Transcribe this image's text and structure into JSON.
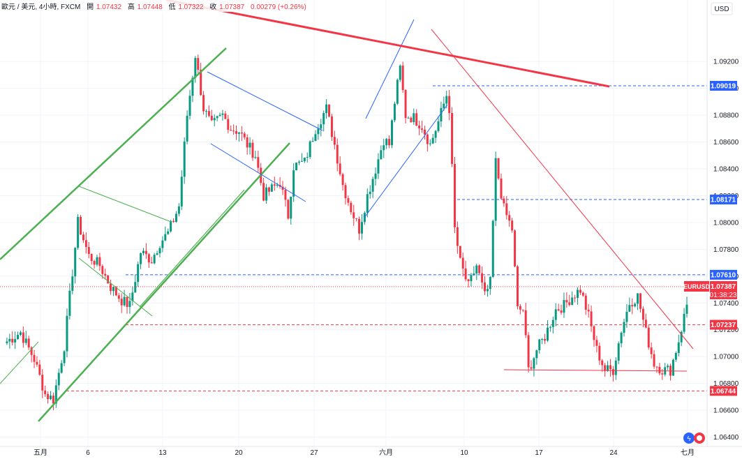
{
  "header": {
    "symbol": "歐元 / 美元, 4小時, FXCM",
    "open_label": "開",
    "open_value": "1.07432",
    "high_label": "高",
    "high_value": "1.07448",
    "low_label": "低",
    "low_value": "1.07322",
    "close_label": "收",
    "close_value": "1.07387",
    "change": "0.00279 (+0.26%)"
  },
  "currency_button": "USD",
  "price_tag": {
    "symbol": "EURUSD",
    "price": "1.07387",
    "countdown": "01:38:23"
  },
  "level_tags": [
    "1.09019",
    "1.08171",
    "1.07610",
    "1.07237",
    "1.06744"
  ],
  "colors": {
    "up": "#089981",
    "down": "#f23645",
    "blue": "#2962ff",
    "green": "#4caf50"
  },
  "chart_data": {
    "type": "candlestick",
    "title": "",
    "xlabel": "",
    "ylabel": "",
    "ylim": [
      1.0632,
      1.0932
    ],
    "y_ticks": [
      "1.06400",
      "1.06600",
      "1.06800",
      "1.07000",
      "1.07200",
      "1.07400",
      "1.07600",
      "1.07800",
      "1.08000",
      "1.08200",
      "1.08400",
      "1.08600",
      "1.08800",
      "1.09000",
      "1.09200"
    ],
    "x_ticks": [
      "五月",
      "6",
      "13",
      "20",
      "27",
      "六月",
      "10",
      "17",
      "24",
      "七月"
    ],
    "grid": true,
    "horizontal_levels": [
      {
        "value": 1.09019,
        "style": "blue-dashed"
      },
      {
        "value": 1.08171,
        "style": "blue-dashed"
      },
      {
        "value": 1.0761,
        "style": "blue-dashed"
      },
      {
        "value": 1.07237,
        "style": "red-dashed"
      },
      {
        "value": 1.06744,
        "style": "red-dashed"
      }
    ],
    "anchors": [
      [
        0,
        1.071
      ],
      [
        6,
        1.0718
      ],
      [
        11,
        1.0698
      ],
      [
        15,
        1.0672
      ],
      [
        18,
        1.0668
      ],
      [
        22,
        1.0708
      ],
      [
        27,
        1.08
      ],
      [
        31,
        1.0775
      ],
      [
        35,
        1.0768
      ],
      [
        39,
        1.0752
      ],
      [
        43,
        1.0742
      ],
      [
        46,
        1.0738
      ],
      [
        50,
        1.0778
      ],
      [
        54,
        1.0772
      ],
      [
        57,
        1.0785
      ],
      [
        60,
        1.0792
      ],
      [
        64,
        1.0812
      ],
      [
        67,
        1.088
      ],
      [
        70,
        1.0925
      ],
      [
        73,
        1.0885
      ],
      [
        76,
        1.0872
      ],
      [
        80,
        1.088
      ],
      [
        83,
        1.087
      ],
      [
        86,
        1.0868
      ],
      [
        89,
        1.0858
      ],
      [
        92,
        1.085
      ],
      [
        95,
        1.082
      ],
      [
        98,
        1.0825
      ],
      [
        101,
        1.083
      ],
      [
        104,
        1.0805
      ],
      [
        106,
        1.0842
      ],
      [
        110,
        1.0845
      ],
      [
        114,
        1.087
      ],
      [
        118,
        1.0885
      ],
      [
        121,
        1.0858
      ],
      [
        124,
        1.0828
      ],
      [
        127,
        1.081
      ],
      [
        130,
        1.0795
      ],
      [
        133,
        1.082
      ],
      [
        136,
        1.084
      ],
      [
        139,
        1.0862
      ],
      [
        141,
        1.0858
      ],
      [
        143,
        1.089
      ],
      [
        145,
        1.0915
      ],
      [
        147,
        1.088
      ],
      [
        150,
        1.0878
      ],
      [
        153,
        1.0872
      ],
      [
        156,
        1.0858
      ],
      [
        159,
        1.0875
      ],
      [
        162,
        1.0895
      ],
      [
        163,
        1.0885
      ],
      [
        164,
        1.084
      ],
      [
        165,
        1.0795
      ],
      [
        167,
        1.077
      ],
      [
        170,
        1.0752
      ],
      [
        173,
        1.0768
      ],
      [
        176,
        1.0745
      ],
      [
        178,
        1.0755
      ],
      [
        180,
        1.0845
      ],
      [
        183,
        1.081
      ],
      [
        186,
        1.0795
      ],
      [
        188,
        1.0735
      ],
      [
        190,
        1.0735
      ],
      [
        192,
        1.069
      ],
      [
        195,
        1.0705
      ],
      [
        198,
        1.0715
      ],
      [
        202,
        1.0735
      ],
      [
        205,
        1.0738
      ],
      [
        208,
        1.0745
      ],
      [
        211,
        1.075
      ],
      [
        214,
        1.073
      ],
      [
        217,
        1.0705
      ],
      [
        220,
        1.069
      ],
      [
        223,
        1.069
      ],
      [
        226,
        1.072
      ],
      [
        229,
        1.074
      ],
      [
        232,
        1.0745
      ],
      [
        235,
        1.0718
      ],
      [
        238,
        1.0695
      ],
      [
        241,
        1.069
      ],
      [
        244,
        1.069
      ],
      [
        247,
        1.0712
      ],
      [
        250,
        1.07387
      ]
    ]
  }
}
